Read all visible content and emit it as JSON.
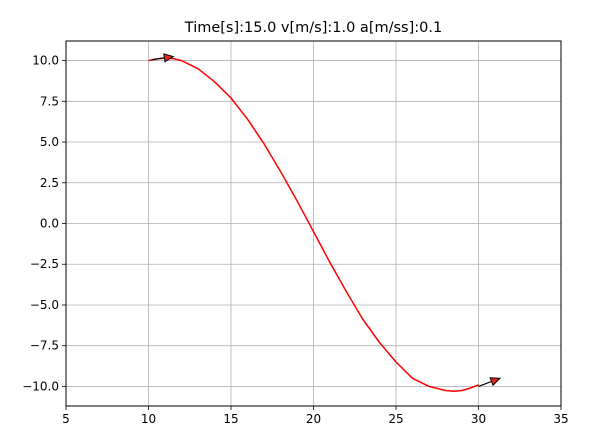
{
  "chart_data": {
    "type": "line",
    "title": "Time[s]:15.0 v[m/s]:1.0 a[m/ss]:0.1",
    "xlabel": "",
    "ylabel": "",
    "xlim": [
      5,
      35
    ],
    "ylim": [
      -11.2,
      11.2
    ],
    "grid": true,
    "x_ticks": [
      5,
      10,
      15,
      20,
      25,
      30,
      35
    ],
    "x_tick_labels": [
      "5",
      "10",
      "15",
      "20",
      "25",
      "30",
      "35"
    ],
    "y_ticks": [
      10.0,
      7.5,
      5.0,
      2.5,
      0.0,
      -2.5,
      -5.0,
      -7.5,
      -10.0
    ],
    "y_tick_labels": [
      "10.0",
      "7.5",
      "5.0",
      "2.5",
      "0.0",
      "−2.5",
      "−5.0",
      "−7.5",
      "−10.0"
    ],
    "series": [
      {
        "color": "#ff0000",
        "x": [
          10.0,
          10.5,
          11.0,
          11.5,
          12.0,
          13.0,
          14.0,
          15.0,
          16.0,
          17.0,
          18.0,
          19.0,
          20.0,
          21.0,
          22.0,
          23.0,
          24.0,
          25.0,
          26.0,
          27.0,
          28.0,
          28.5,
          29.0,
          29.5,
          30.0
        ],
        "y": [
          10.0,
          10.1,
          10.15,
          10.12,
          10.0,
          9.5,
          8.7,
          7.7,
          6.4,
          4.9,
          3.2,
          1.4,
          -0.5,
          -2.4,
          -4.2,
          -5.9,
          -7.3,
          -8.5,
          -9.5,
          -10.0,
          -10.25,
          -10.3,
          -10.25,
          -10.1,
          -9.9
        ]
      }
    ],
    "arrows": [
      {
        "x": 10.2,
        "y": 10.05,
        "dx": 1.3,
        "dy": 0.2
      },
      {
        "x": 30.0,
        "y": -10.0,
        "dx": 1.3,
        "dy": 0.5
      }
    ]
  }
}
